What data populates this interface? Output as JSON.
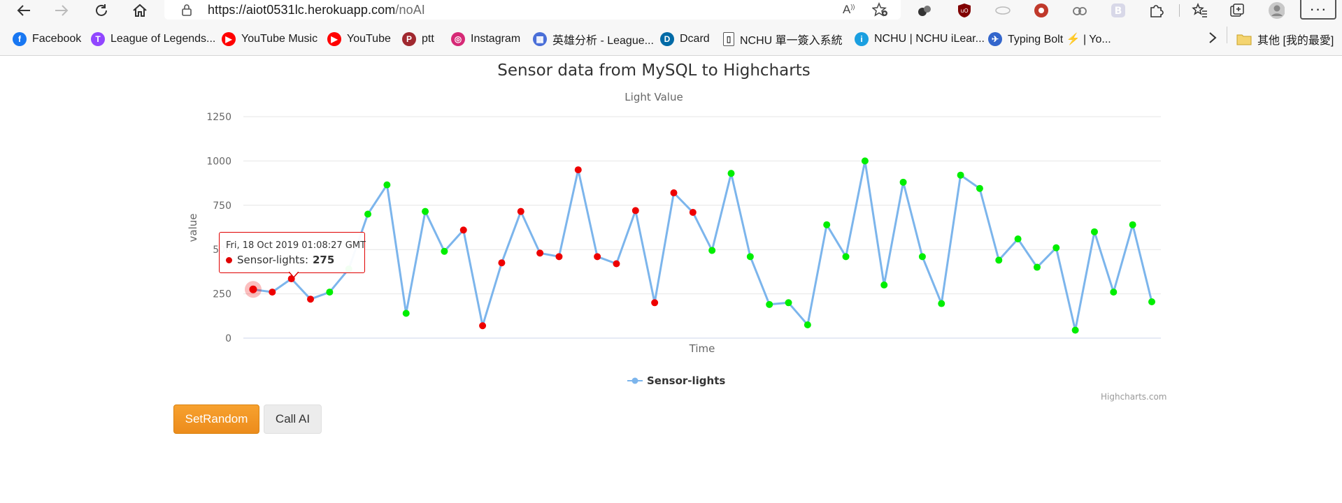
{
  "browser": {
    "url_host": "https://aiot0531lc.herokuapp.com",
    "url_path": "/noAI",
    "icons": [
      "back-arrow-icon",
      "forward-arrow-icon",
      "reload-icon",
      "home-icon",
      "lock-icon",
      "read-aloud-icon",
      "favorite-add-icon",
      "extension-icon",
      "favorites-icon",
      "collections-icon",
      "profile-icon",
      "more-icon"
    ]
  },
  "bookmarks": [
    {
      "label": "Facebook",
      "icon_color": "#1877f2",
      "icon_glyph": "f"
    },
    {
      "label": "League of Legends...",
      "icon_color": "#9146ff",
      "icon_glyph": "T"
    },
    {
      "label": "YouTube Music",
      "icon_color": "#ff0000",
      "icon_glyph": "▶"
    },
    {
      "label": "YouTube",
      "icon_color": "#ff0000",
      "icon_glyph": "▶"
    },
    {
      "label": "ptt",
      "icon_color": "#a0282f",
      "icon_glyph": "P"
    },
    {
      "label": "Instagram",
      "icon_color": "#d62976",
      "icon_glyph": "◎"
    },
    {
      "label": "英雄分析 - League...",
      "icon_color": "#4a6fd8",
      "icon_glyph": "▦"
    },
    {
      "label": "Dcard",
      "icon_color": "#006aa6",
      "icon_glyph": "D"
    },
    {
      "label": "NCHU 單一簽入系統",
      "icon_color": "#ffffff",
      "icon_glyph": "▯"
    },
    {
      "label": "NCHU | NCHU iLear...",
      "icon_color": "#1a9fe0",
      "icon_glyph": "i"
    },
    {
      "label": "Typing Bolt ⚡ | Yo...",
      "icon_color": "#3366cc",
      "icon_glyph": "✈"
    }
  ],
  "bookmarks_other": "其他 [我的最愛]",
  "chart": {
    "title": "Sensor data from MySQL to Highcharts",
    "subtitle": "Light Value",
    "credits": "Highcharts.com"
  },
  "chart_data": {
    "type": "line",
    "title": "Sensor data from MySQL to Highcharts",
    "subtitle": "Light Value",
    "xlabel": "Time",
    "ylabel": "value",
    "ylim": [
      0,
      1250
    ],
    "y_ticks": [
      "0",
      "250",
      "500",
      "750",
      "1000",
      "1250"
    ],
    "grid": true,
    "legend_position": "bottom-center",
    "line_color": "#7cb5ec",
    "marker_colors": {
      "high": "#00ee00",
      "low": "#ee0000"
    },
    "series": [
      {
        "name": "Sensor-lights",
        "values": [
          275,
          260,
          335,
          220,
          260,
          390,
          700,
          865,
          140,
          715,
          490,
          610,
          70,
          425,
          715,
          480,
          460,
          950,
          460,
          420,
          720,
          200,
          820,
          710,
          495,
          930,
          460,
          190,
          200,
          75,
          640,
          460,
          1000,
          300,
          880,
          460,
          195,
          920,
          845,
          440,
          560,
          400,
          510,
          45,
          600,
          260,
          640,
          205
        ],
        "marker": [
          "red",
          "red",
          "red",
          "red",
          "green",
          "green",
          "green",
          "green",
          "green",
          "green",
          "green",
          "red",
          "red",
          "red",
          "red",
          "red",
          "red",
          "red",
          "red",
          "red",
          "red",
          "red",
          "red",
          "red",
          "green",
          "green",
          "green",
          "green",
          "green",
          "green",
          "green",
          "green",
          "green",
          "green",
          "green",
          "green",
          "green",
          "green",
          "green",
          "green",
          "green",
          "green",
          "green",
          "green",
          "green",
          "green",
          "green",
          "green"
        ]
      }
    ],
    "tooltip": {
      "date": "Fri, 18 Oct 2019 01:08:27 GMT",
      "series": "Sensor-lights",
      "value": "275"
    }
  },
  "buttons": {
    "set_random": "SetRandom",
    "call_ai": "Call AI"
  }
}
